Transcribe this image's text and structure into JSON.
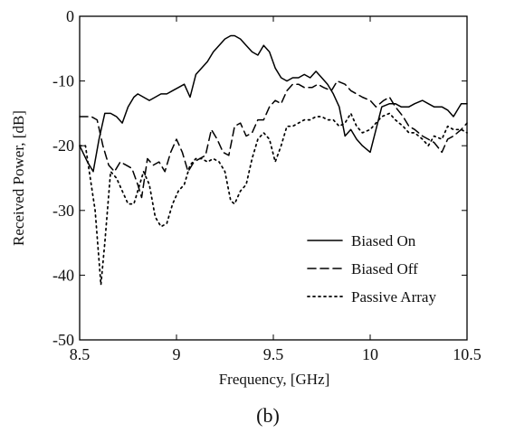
{
  "chart_data": {
    "type": "line",
    "title": "",
    "caption": "(b)",
    "xlabel": "Frequency, [GHz]",
    "ylabel": "Received Power, [dB]",
    "xlim": [
      8.5,
      10.5
    ],
    "ylim": [
      -50,
      0
    ],
    "xticks": [
      8.5,
      9,
      9.5,
      10,
      10.5
    ],
    "xtick_labels": [
      "8.5",
      "9",
      "9.5",
      "10",
      "10.5"
    ],
    "yticks": [
      0,
      -10,
      -20,
      -30,
      -40,
      -50
    ],
    "ytick_labels": [
      "0",
      "-10",
      "-20",
      "-30",
      "-40",
      "-50"
    ],
    "grid": false,
    "legend_position": "bottom-right",
    "series": [
      {
        "name": "Biased On",
        "line_style": "solid",
        "color": "#000000",
        "x": [
          8.5,
          8.54,
          8.57,
          8.6,
          8.63,
          8.66,
          8.69,
          8.72,
          8.75,
          8.78,
          8.8,
          8.83,
          8.86,
          8.89,
          8.92,
          8.95,
          8.98,
          9.01,
          9.04,
          9.07,
          9.1,
          9.13,
          9.16,
          9.19,
          9.22,
          9.25,
          9.28,
          9.3,
          9.33,
          9.36,
          9.39,
          9.42,
          9.45,
          9.48,
          9.51,
          9.54,
          9.57,
          9.6,
          9.63,
          9.66,
          9.69,
          9.72,
          9.75,
          9.78,
          9.81,
          9.84,
          9.87,
          9.9,
          9.93,
          9.96,
          10.0,
          10.03,
          10.06,
          10.1,
          10.13,
          10.16,
          10.2,
          10.23,
          10.27,
          10.3,
          10.33,
          10.37,
          10.4,
          10.43,
          10.47,
          10.5
        ],
        "y": [
          -20,
          -22.5,
          -24,
          -19,
          -15,
          -15,
          -15.5,
          -16.5,
          -14,
          -12.5,
          -12,
          -12.5,
          -13,
          -12.5,
          -12,
          -12,
          -11.5,
          -11,
          -10.5,
          -12.5,
          -9,
          -8,
          -7,
          -5.5,
          -4.5,
          -3.5,
          -3,
          -3,
          -3.5,
          -4.5,
          -5.5,
          -6,
          -4.5,
          -5.5,
          -8,
          -9.5,
          -10,
          -9.5,
          -9.5,
          -9,
          -9.5,
          -8.5,
          -9.5,
          -10.5,
          -12,
          -14,
          -18.5,
          -17.5,
          -19,
          -20,
          -21,
          -17.5,
          -14,
          -13.5,
          -13.5,
          -14,
          -14,
          -13.5,
          -13,
          -13.5,
          -14,
          -14,
          -14.5,
          -15.5,
          -13.5,
          -13.5
        ]
      },
      {
        "name": "Biased Off",
        "line_style": "dashed",
        "color": "#000000",
        "x": [
          8.5,
          8.53,
          8.56,
          8.59,
          8.62,
          8.65,
          8.68,
          8.71,
          8.74,
          8.77,
          8.8,
          8.82,
          8.85,
          8.88,
          8.91,
          8.94,
          8.97,
          9.0,
          9.03,
          9.06,
          9.09,
          9.12,
          9.15,
          9.18,
          9.21,
          9.24,
          9.27,
          9.3,
          9.33,
          9.36,
          9.39,
          9.42,
          9.45,
          9.48,
          9.51,
          9.54,
          9.57,
          9.6,
          9.63,
          9.66,
          9.7,
          9.73,
          9.76,
          9.8,
          9.83,
          9.87,
          9.9,
          9.93,
          9.96,
          10.0,
          10.03,
          10.07,
          10.1,
          10.13,
          10.17,
          10.2,
          10.23,
          10.27,
          10.3,
          10.33,
          10.37,
          10.4,
          10.43,
          10.47,
          10.5
        ],
        "y": [
          -15.5,
          -15.5,
          -15.5,
          -16,
          -20,
          -23,
          -24,
          -22.5,
          -23,
          -23.5,
          -26,
          -28,
          -22,
          -23,
          -22.5,
          -24,
          -21,
          -19,
          -21,
          -24,
          -22.5,
          -22,
          -21.5,
          -17.5,
          -19,
          -21,
          -21.5,
          -17,
          -16.5,
          -18.5,
          -18,
          -16,
          -16,
          -14,
          -13,
          -13.5,
          -11.5,
          -10.5,
          -10.5,
          -11,
          -11,
          -10.5,
          -11,
          -11.5,
          -10,
          -10.5,
          -11.5,
          -12,
          -12.5,
          -13,
          -14,
          -13,
          -12.5,
          -14,
          -15.5,
          -17,
          -17.5,
          -18.5,
          -19,
          -19.5,
          -21,
          -19,
          -18.5,
          -17.5,
          -16.5
        ]
      },
      {
        "name": "Passive Array",
        "line_style": "dotted",
        "color": "#000000",
        "x": [
          8.5,
          8.53,
          8.56,
          8.58,
          8.61,
          8.63,
          8.66,
          8.69,
          8.72,
          8.75,
          8.78,
          8.8,
          8.83,
          8.86,
          8.89,
          8.92,
          8.95,
          8.98,
          9.01,
          9.04,
          9.07,
          9.1,
          9.13,
          9.16,
          9.19,
          9.22,
          9.25,
          9.28,
          9.3,
          9.33,
          9.36,
          9.39,
          9.42,
          9.45,
          9.48,
          9.51,
          9.54,
          9.57,
          9.6,
          9.63,
          9.66,
          9.69,
          9.72,
          9.75,
          9.78,
          9.81,
          9.84,
          9.87,
          9.9,
          9.93,
          9.96,
          10.0,
          10.03,
          10.06,
          10.1,
          10.13,
          10.17,
          10.2,
          10.23,
          10.27,
          10.3,
          10.33,
          10.37,
          10.4,
          10.43,
          10.47,
          10.5
        ],
        "y": [
          -20,
          -20,
          -26,
          -30,
          -41.5,
          -35,
          -24,
          -25,
          -27,
          -29,
          -29,
          -27,
          -24,
          -26,
          -31,
          -32.5,
          -32,
          -29,
          -27,
          -26,
          -23,
          -22,
          -22,
          -22.5,
          -22,
          -22.5,
          -24,
          -28.5,
          -29,
          -27,
          -26,
          -22,
          -19,
          -18,
          -19,
          -22.5,
          -20,
          -17,
          -17,
          -16.5,
          -16,
          -16,
          -15.5,
          -15.5,
          -16,
          -16,
          -17,
          -16.5,
          -15,
          -17,
          -18,
          -17.5,
          -16.5,
          -15.5,
          -15,
          -16,
          -17,
          -18,
          -18,
          -19,
          -20,
          -18.5,
          -19,
          -17,
          -17.5,
          -17.5,
          -18
        ]
      }
    ]
  }
}
